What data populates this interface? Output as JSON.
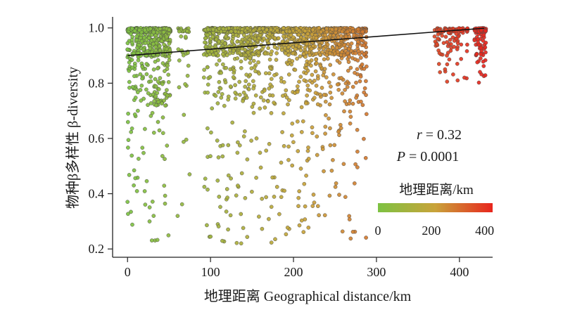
{
  "chart_data": {
    "type": "scatter",
    "title": "",
    "xlabel": "地理距离 Geographical distance/km",
    "ylabel": "物种β多样性 β-diversity",
    "xlim": [
      -18,
      440
    ],
    "ylim": [
      0.17,
      1.04
    ],
    "xticks": [
      0,
      100,
      200,
      300,
      400
    ],
    "yticks": [
      0.2,
      0.4,
      0.6,
      0.8,
      1.0
    ],
    "ytick_labels": [
      "0.2",
      "0.4",
      "0.6",
      "0.8",
      "1.0"
    ],
    "grid": false,
    "regression": {
      "x": [
        0,
        430
      ],
      "y": [
        0.9,
        0.999
      ]
    },
    "stats": {
      "r_symbol": "r",
      "r_value": " = 0.32",
      "p_symbol": "P",
      "p_value": " = 0.0001"
    },
    "colorbar": {
      "title": "地理距离/km",
      "range": [
        0,
        430
      ],
      "ticks": [
        0,
        200,
        400
      ],
      "colors": [
        "#7dc242",
        "#c9a33a",
        "#e8251d"
      ]
    },
    "clusters": [
      {
        "x_range": [
          0,
          52
        ],
        "count": 620
      },
      {
        "x_range": [
          60,
          75
        ],
        "count": 40
      },
      {
        "x_range": [
          92,
          183
        ],
        "count": 760
      },
      {
        "x_range": [
          185,
          288
        ],
        "count": 900
      },
      {
        "x_range": [
          370,
          410
        ],
        "count": 120
      },
      {
        "x_range": [
          418,
          432
        ],
        "count": 90
      }
    ]
  }
}
